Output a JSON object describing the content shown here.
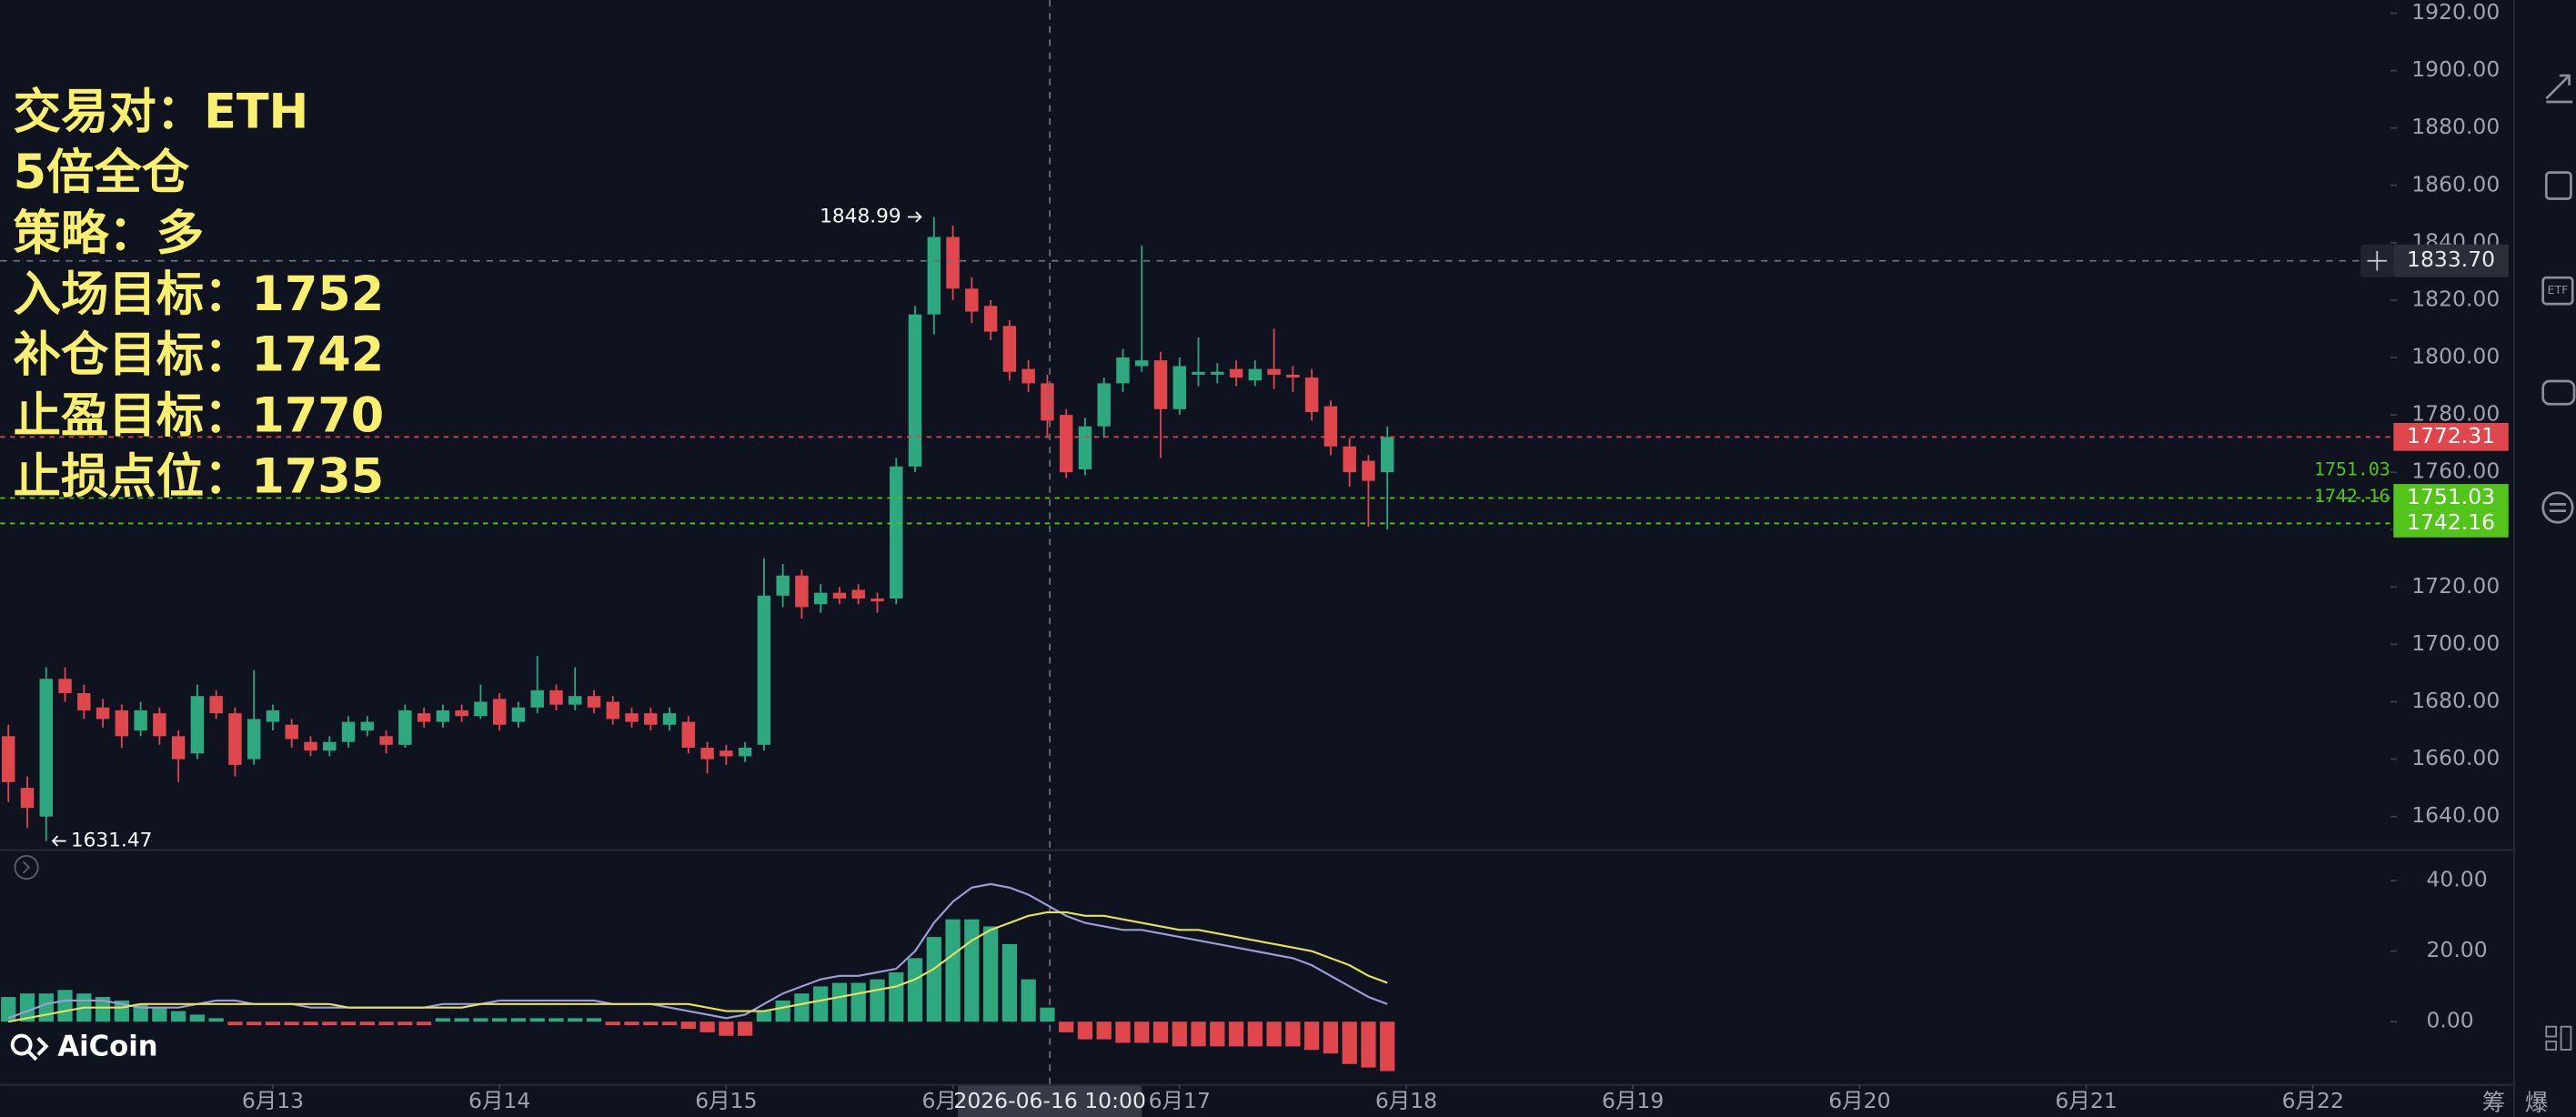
{
  "chart_data": [
    {
      "type": "candlestick",
      "annotations": [
        "交易对：ETH",
        "5倍全仓",
        "策略：多",
        "入场目标：1752",
        "补仓目标：1742",
        "止盈目标：1770",
        "止损点位：1735"
      ],
      "x": [
        11.8333,
        11.9167,
        12,
        12.0833,
        12.1667,
        12.25,
        12.3333,
        12.4167,
        12.5,
        12.5833,
        12.6667,
        12.75,
        12.8333,
        12.9167,
        13,
        13.0833,
        13.1667,
        13.25,
        13.3333,
        13.4167,
        13.5,
        13.5833,
        13.6667,
        13.75,
        13.8333,
        13.9167,
        14,
        14.0833,
        14.1667,
        14.25,
        14.3333,
        14.4167,
        14.5,
        14.5833,
        14.6667,
        14.75,
        14.8333,
        14.9167,
        15,
        15.0833,
        15.1667,
        15.25,
        15.3333,
        15.4167,
        15.5,
        15.5833,
        15.6667,
        15.75,
        15.8333,
        15.9167,
        16,
        16.0833,
        16.1667,
        16.25,
        16.3333,
        16.4167,
        16.5,
        16.5833,
        16.6667,
        16.75,
        16.8333,
        16.9167,
        17,
        17.0833,
        17.1667,
        17.25,
        17.3333,
        17.4167,
        17.5,
        17.5833,
        17.6667,
        17.75,
        17.8333,
        17.9167
      ],
      "open": [
        1668,
        1650,
        1640,
        1688,
        1683,
        1678,
        1677,
        1670,
        1676,
        1668,
        1662,
        1682,
        1676,
        1660,
        1673,
        1672,
        1666,
        1663,
        1666,
        1670,
        1668,
        1665,
        1676,
        1673,
        1677,
        1675,
        1681,
        1673,
        1678,
        1684,
        1679,
        1682,
        1680,
        1676,
        1676,
        1672,
        1673,
        1664,
        1663,
        1661,
        1665,
        1717,
        1724,
        1714,
        1718,
        1719,
        1716,
        1716,
        1762,
        1815,
        1842,
        1824,
        1818,
        1811,
        1796,
        1791,
        1780,
        1761,
        1776,
        1791,
        1797,
        1799,
        1782,
        1794,
        1794,
        1796,
        1792,
        1796,
        1794,
        1793,
        1783,
        1769,
        1764,
        1760
      ],
      "high": [
        1672,
        1654,
        1692,
        1692,
        1686,
        1681,
        1679,
        1680,
        1678,
        1670,
        1686,
        1684,
        1678,
        1691,
        1679,
        1674,
        1668,
        1668,
        1675,
        1675,
        1670,
        1679,
        1678,
        1679,
        1679,
        1686,
        1683,
        1680,
        1696,
        1686,
        1692,
        1684,
        1682,
        1678,
        1678,
        1678,
        1675,
        1666,
        1665,
        1666,
        1730,
        1728,
        1726,
        1721,
        1720,
        1721,
        1718,
        1765,
        1818,
        1848.99,
        1846,
        1828,
        1820,
        1813,
        1799,
        1794,
        1782,
        1779,
        1793,
        1803,
        1839,
        1802,
        1800,
        1807,
        1798,
        1799,
        1799,
        1810,
        1797,
        1796,
        1785,
        1772,
        1766,
        1776
      ],
      "low": [
        1645,
        1636,
        1631.47,
        1680,
        1674,
        1671,
        1664,
        1668,
        1665,
        1652,
        1660,
        1674,
        1654,
        1658,
        1670,
        1664,
        1661,
        1661,
        1664,
        1668,
        1662,
        1664,
        1671,
        1671,
        1673,
        1674,
        1670,
        1671,
        1676,
        1677,
        1677,
        1676,
        1672,
        1671,
        1670,
        1670,
        1662,
        1655,
        1658,
        1659,
        1663,
        1713,
        1709,
        1711,
        1714,
        1714,
        1711,
        1714,
        1760,
        1808,
        1820,
        1812,
        1806,
        1792,
        1788,
        1772,
        1758,
        1759,
        1772,
        1788,
        1795,
        1765,
        1780,
        1790,
        1791,
        1790,
        1790,
        1789,
        1788,
        1778,
        1766,
        1755,
        1741,
        1740
      ],
      "close": [
        1652,
        1643,
        1688,
        1683,
        1677,
        1674,
        1668,
        1677,
        1668,
        1660,
        1682,
        1676,
        1658,
        1674,
        1677,
        1667,
        1663,
        1666,
        1673,
        1673,
        1665,
        1677,
        1673,
        1677,
        1675,
        1680,
        1672,
        1678,
        1684,
        1679,
        1682,
        1678,
        1674,
        1673,
        1672,
        1676,
        1664,
        1660,
        1661,
        1664,
        1717,
        1724,
        1713,
        1718,
        1716,
        1716,
        1715,
        1762,
        1815,
        1842,
        1824,
        1816,
        1809,
        1795,
        1791,
        1778,
        1760,
        1776,
        1791,
        1800,
        1799,
        1782,
        1797,
        1795,
        1795,
        1793,
        1796,
        1794,
        1793,
        1781,
        1769,
        1760,
        1757,
        1772.31
      ],
      "up_color": "#2ea87f",
      "down_color": "#e0474c",
      "xlim": [
        11.797,
        22.341
      ],
      "xticks": [
        {
          "value": 13,
          "label": "6月13"
        },
        {
          "value": 14,
          "label": "6月14"
        },
        {
          "value": 15,
          "label": "6月15"
        },
        {
          "value": 16,
          "label": "6月16"
        },
        {
          "value": 17,
          "label": "6月17"
        },
        {
          "value": 18,
          "label": "6月18"
        },
        {
          "value": 19,
          "label": "6月19"
        },
        {
          "value": 20,
          "label": "6月20"
        },
        {
          "value": 21,
          "label": "6月21"
        },
        {
          "value": 22,
          "label": "6月22"
        }
      ],
      "ylim": [
        1628.6,
        1924.6
      ],
      "yticks": [
        {
          "value": 1920,
          "label": "1920.00"
        },
        {
          "value": 1900,
          "label": "1900.00"
        },
        {
          "value": 1880,
          "label": "1880.00"
        },
        {
          "value": 1860,
          "label": "1860.00"
        },
        {
          "value": 1840,
          "label": "1840.00"
        },
        {
          "value": 1820,
          "label": "1820.00"
        },
        {
          "value": 1800,
          "label": "1800.00"
        },
        {
          "value": 1780,
          "label": "1780.00"
        },
        {
          "value": 1760,
          "label": "1760.00"
        },
        {
          "value": 1740,
          "label": "1740.00"
        },
        {
          "value": 1720,
          "label": "1720.00"
        },
        {
          "value": 1700,
          "label": "1700.00"
        },
        {
          "value": 1680,
          "label": "1680.00"
        },
        {
          "value": 1660,
          "label": "1660.00"
        },
        {
          "value": 1640,
          "label": "1640.00"
        }
      ],
      "price_lines": [
        {
          "value": 1772.31,
          "color": "#e0474c"
        },
        {
          "value": 1751.03,
          "color": "#52c41a",
          "inline_label": true
        },
        {
          "value": 1742.16,
          "color": "#52c41a",
          "inline_label": true
        }
      ],
      "crosshair": {
        "time_label": "2026-06-16 10:00",
        "price": {
          "value": 1833.7,
          "label": "1833.70"
        }
      },
      "logo": "AiCoin",
      "toolbar": [
        "筹",
        "爆"
      ],
      "sidebar_labels": [
        "ETF"
      ]
    },
    {
      "type": "macd",
      "ylim": [
        -17.7,
        48.4
      ],
      "yticks": [
        {
          "value": 40,
          "label": "40.00"
        },
        {
          "value": 20,
          "label": "20.00"
        },
        {
          "value": 0,
          "label": "0.00"
        }
      ],
      "values": [
        7,
        8,
        8,
        9,
        8,
        7,
        6,
        5,
        4,
        3,
        2,
        1,
        -1,
        -1,
        -1,
        -1,
        -1,
        -1,
        -1,
        -1,
        -1,
        -1,
        -1,
        1,
        1,
        1,
        1,
        1,
        1,
        1,
        1,
        1,
        -1,
        -1,
        -1,
        -1,
        -2,
        -3,
        -4,
        -4,
        3,
        6,
        8,
        10,
        11,
        11,
        12,
        14,
        18,
        24,
        29,
        29,
        27,
        22,
        12,
        4,
        -3,
        -5,
        -5,
        -6,
        -6,
        -6,
        -7,
        -7,
        -7,
        -7,
        -7,
        -7,
        -7,
        -8,
        -9,
        -12,
        -13,
        -14
      ],
      "lines": [
        {
          "color": "#9c9cd6",
          "values": [
            1,
            3,
            5,
            6,
            6,
            6,
            5,
            4,
            4,
            4,
            5,
            6,
            6,
            5,
            5,
            5,
            4,
            4,
            4,
            4,
            4,
            4,
            4,
            5,
            5,
            5,
            6,
            6,
            6,
            6,
            6,
            6,
            5,
            5,
            5,
            4,
            3,
            2,
            1,
            2,
            5,
            8,
            10,
            12,
            13,
            13,
            14,
            15,
            20,
            28,
            34,
            38,
            39,
            38,
            36,
            33,
            30,
            28,
            27,
            26,
            26,
            25,
            24,
            23,
            22,
            21,
            20,
            19,
            18,
            16,
            13,
            10,
            7,
            5
          ]
        },
        {
          "color": "#e8e05a",
          "values": [
            0,
            1,
            2,
            3,
            4,
            4,
            4,
            5,
            5,
            5,
            5,
            5,
            5,
            5,
            5,
            5,
            5,
            5,
            4,
            4,
            4,
            4,
            4,
            4,
            4,
            5,
            5,
            5,
            5,
            5,
            5,
            5,
            5,
            5,
            5,
            5,
            5,
            4,
            3,
            3,
            3,
            4,
            5,
            6,
            7,
            8,
            9,
            10,
            12,
            15,
            19,
            23,
            26,
            28,
            30,
            31,
            31,
            30,
            30,
            29,
            28,
            27,
            26,
            26,
            25,
            24,
            23,
            22,
            21,
            20,
            18,
            16,
            13,
            11
          ]
        }
      ]
    }
  ]
}
